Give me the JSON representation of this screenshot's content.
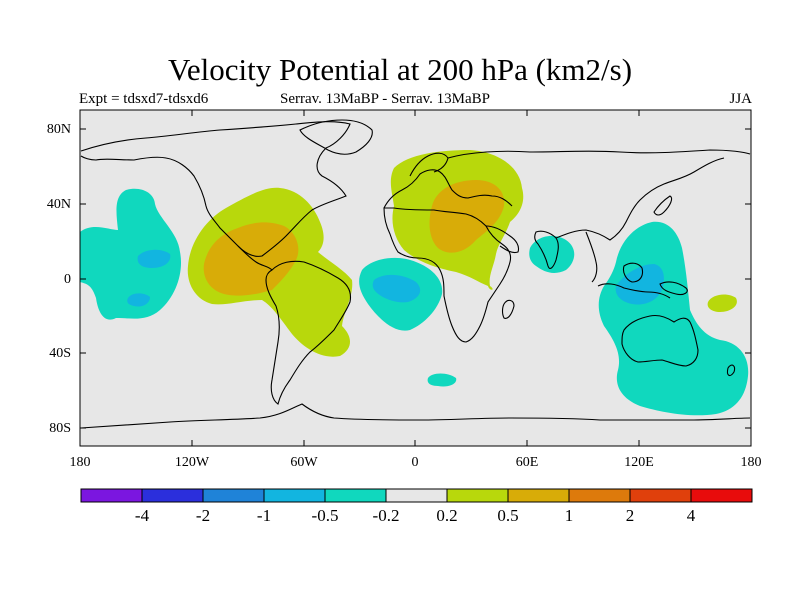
{
  "header": {
    "title": "Velocity Potential at 200 hPa (km2/s)",
    "left_label": "Expt = tdsxd7-tdsxd6",
    "center_label": "Serrav.   13MaBP - Serrav.   13MaBP",
    "right_label": "JJA"
  },
  "axes": {
    "y_ticks": [
      "80N",
      "40N",
      "0",
      "40S",
      "80S"
    ],
    "x_ticks": [
      "180",
      "120W",
      "60W",
      "0",
      "60E",
      "120E",
      "180"
    ]
  },
  "colorbar": {
    "labels": [
      "-4",
      "-2",
      "-1",
      "-0.5",
      "-0.2",
      "0.2",
      "0.5",
      "1",
      "2",
      "4"
    ],
    "colors": [
      "#7b16e0",
      "#2b2fdc",
      "#1f83d8",
      "#12b5e0",
      "#10d8be",
      "#e7e7e7",
      "#b8d80c",
      "#d8ac08",
      "#dd7a0c",
      "#e0400c",
      "#e80c0c"
    ]
  },
  "map": {
    "ocean_color": "#e7e7e7",
    "coast_color": "#000000"
  }
}
